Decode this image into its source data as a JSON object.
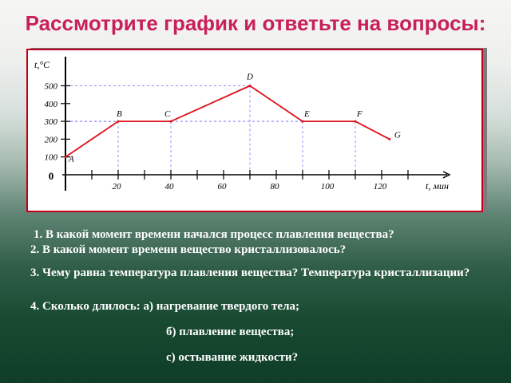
{
  "slide": {
    "title": "Рассмотрите график и ответьте на вопросы:"
  },
  "chart_data": {
    "type": "line",
    "title": "",
    "ylabel": "t,°C",
    "xlabel": "t, мин",
    "y_ticks": [
      "100",
      "200",
      "300",
      "400",
      "500"
    ],
    "x_ticks": [
      "20",
      "40",
      "60",
      "80",
      "100",
      "120"
    ],
    "origin_label": "0",
    "xlim": [
      0,
      140
    ],
    "ylim": [
      0,
      550
    ],
    "grid": "dashed guide lines from points to axes",
    "line_color": "#e0101a",
    "guide_color": "#8f8fff",
    "points": [
      {
        "label": "A",
        "x": 0,
        "y": 100
      },
      {
        "label": "B",
        "x": 20,
        "y": 300
      },
      {
        "label": "C",
        "x": 40,
        "y": 300
      },
      {
        "label": "D",
        "x": 70,
        "y": 500
      },
      {
        "label": "E",
        "x": 90,
        "y": 300
      },
      {
        "label": "F",
        "x": 110,
        "y": 300
      },
      {
        "label": "G",
        "x": 123,
        "y": 200
      }
    ]
  },
  "questions": {
    "q1": "1. В какой момент времени начался процесс плавления вещества?",
    "q2": "2. В какой момент времени вещество кристаллизовалось?",
    "q3": "3. Чему равна температура плавления вещества?  Температура кристаллизации?",
    "q4": "4. Сколько длилось: а) нагревание твердого тела;",
    "q4b": "б) плавление вещества;",
    "q4c": "с) остывание жидкости?"
  }
}
